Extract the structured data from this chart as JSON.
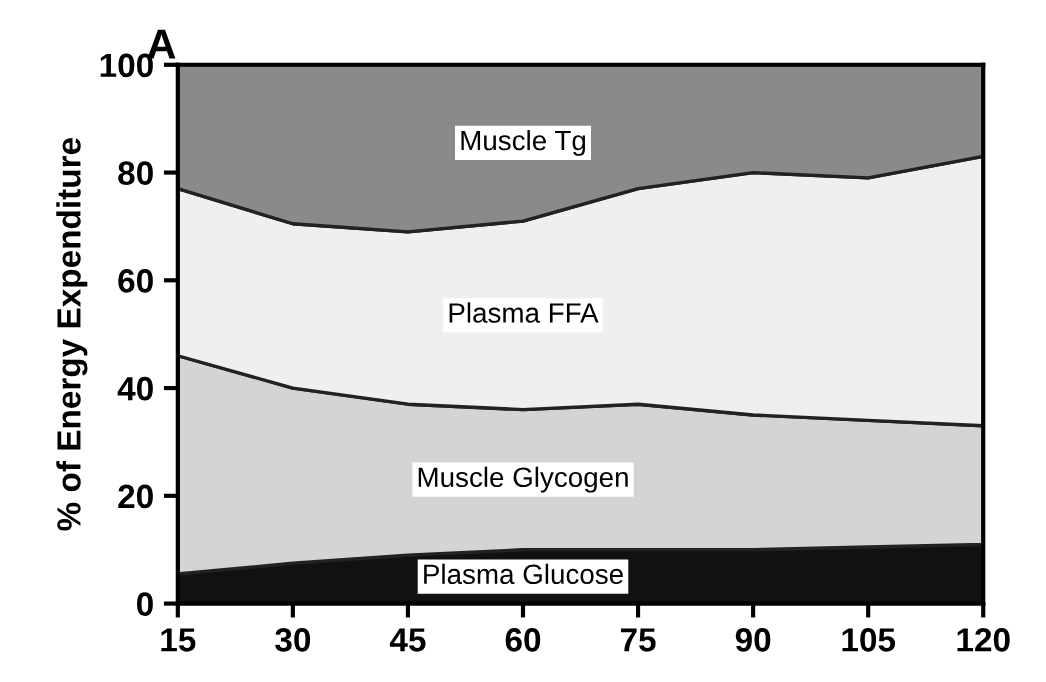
{
  "chart_data": {
    "type": "area",
    "stacked": true,
    "ylabel": "% of Energy Expenditure",
    "x": [
      15,
      30,
      45,
      60,
      75,
      90,
      105,
      120
    ],
    "series": [
      {
        "name": "Plasma Glucose",
        "color": "#111111",
        "values": [
          5.5,
          7.5,
          9,
          10,
          10,
          10,
          10.5,
          11
        ]
      },
      {
        "name": "Muscle Glycogen",
        "color": "#d4d4d4",
        "values": [
          40.5,
          32.5,
          28,
          26,
          27,
          25,
          23.5,
          22
        ]
      },
      {
        "name": "Plasma FFA",
        "color": "#efefef",
        "values": [
          31,
          30.5,
          32,
          35,
          40,
          45,
          45,
          50
        ]
      },
      {
        "name": "Muscle Tg",
        "color": "#8a8a8a",
        "values": [
          23,
          29.5,
          31,
          29,
          23,
          20,
          21,
          17
        ]
      }
    ],
    "xlim": [
      15,
      120
    ],
    "xticks": [
      15,
      30,
      45,
      60,
      75,
      90,
      105,
      120
    ],
    "ylim": [
      0,
      100
    ],
    "yticks": [
      0,
      20,
      40,
      60,
      80,
      100
    ],
    "annotations": [
      "A"
    ],
    "grid": false,
    "legend": false
  }
}
